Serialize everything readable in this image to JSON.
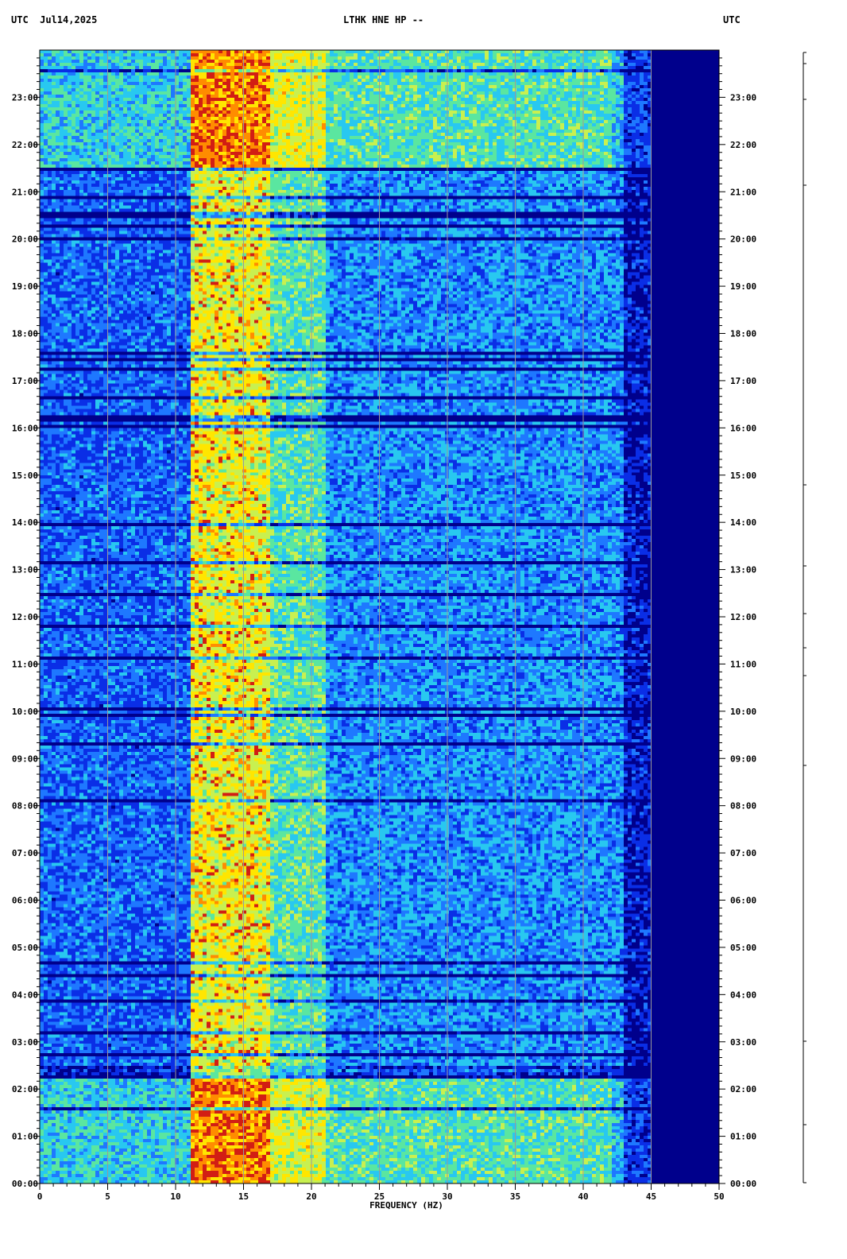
{
  "header": {
    "left": "UTC  Jul14,2025",
    "center": "LTHK HNE HP --",
    "right": "UTC"
  },
  "chart_data": {
    "type": "heatmap",
    "title": "LTHK HNE HP --",
    "date": "Jul14,2025",
    "timezone": "UTC",
    "xlabel": "FREQUENCY (HZ)",
    "xlim": [
      0,
      50
    ],
    "x_ticks": [
      0,
      5,
      10,
      15,
      20,
      25,
      30,
      35,
      40,
      45,
      50
    ],
    "y_ticks": [
      "00:00",
      "01:00",
      "02:00",
      "03:00",
      "04:00",
      "05:00",
      "06:00",
      "07:00",
      "08:00",
      "09:00",
      "10:00",
      "11:00",
      "12:00",
      "13:00",
      "14:00",
      "15:00",
      "16:00",
      "17:00",
      "18:00",
      "19:00",
      "20:00",
      "21:00",
      "22:00",
      "23:00"
    ],
    "ylim_hours": [
      0,
      24
    ],
    "vertical_gridlines_hz": [
      5,
      10,
      15,
      20,
      25,
      30,
      35,
      40,
      45
    ],
    "colormap": [
      "#00008c",
      "#0a2ee6",
      "#1e78ff",
      "#28c8f0",
      "#5ae6a0",
      "#c8f050",
      "#ffe600",
      "#ff8c00",
      "#d21e14"
    ],
    "energy_bands": [
      {
        "hz": [
          11,
          17
        ],
        "level": "high"
      },
      {
        "hz": [
          17,
          21
        ],
        "level": "medium"
      },
      {
        "hz": [
          21,
          43
        ],
        "level": "low"
      },
      {
        "hz": [
          45,
          50
        ],
        "level": "none"
      }
    ],
    "high_activity_hours": [
      [
        0,
        2.5
      ],
      [
        21.5,
        24
      ]
    ]
  }
}
